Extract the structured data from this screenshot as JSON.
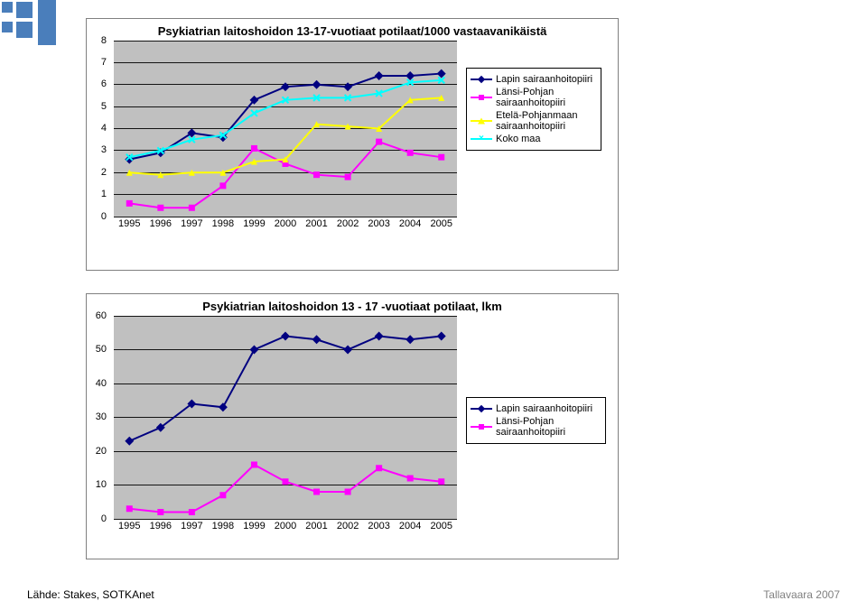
{
  "decorator_color": "#4a7ebb",
  "footer": {
    "source": "Lähde: Stakes, SOTKAnet",
    "author": "Tallavaara 2007"
  },
  "chart1": {
    "type": "line",
    "title": "Psykiatrian laitoshoidon 13-17-vuotiaat potilaat/1000 vastaavanikäistä",
    "plot_bg": "#c0c0c0",
    "grid_color": "#000000",
    "x_labels": [
      "1995",
      "1996",
      "1997",
      "1998",
      "1999",
      "2000",
      "2001",
      "2002",
      "2003",
      "2004",
      "2005"
    ],
    "y_min": 0,
    "y_max": 8,
    "y_step": 1,
    "series": [
      {
        "name": "Lapin sairaanhoitopiiri",
        "color": "#000080",
        "marker": "diamond",
        "values": [
          2.6,
          2.9,
          3.8,
          3.6,
          5.3,
          5.9,
          6.0,
          5.9,
          6.4,
          6.4,
          6.5
        ]
      },
      {
        "name": "Länsi-Pohjan sairaanhoitopiiri",
        "color": "#ff00ff",
        "marker": "square",
        "values": [
          0.6,
          0.4,
          0.4,
          1.4,
          3.1,
          2.4,
          1.9,
          1.8,
          3.4,
          2.9,
          2.7
        ]
      },
      {
        "name": "Etelä-Pohjanmaan sairaanhoitopiiri",
        "color": "#ffff00",
        "marker": "triangle",
        "values": [
          2.0,
          1.9,
          2.0,
          2.0,
          2.5,
          2.6,
          4.2,
          4.1,
          4.0,
          5.3,
          5.4
        ]
      },
      {
        "name": "Koko maa",
        "color": "#00ffff",
        "marker": "x",
        "values": [
          2.7,
          3.0,
          3.5,
          3.7,
          4.7,
          5.3,
          5.4,
          5.4,
          5.6,
          6.1,
          6.2
        ]
      }
    ],
    "tick_fontsize": 11
  },
  "chart2": {
    "type": "line",
    "title": "Psykiatrian laitoshoidon 13 - 17 -vuotiaat potilaat, lkm",
    "plot_bg": "#c0c0c0",
    "grid_color": "#000000",
    "x_labels": [
      "1995",
      "1996",
      "1997",
      "1998",
      "1999",
      "2000",
      "2001",
      "2002",
      "2003",
      "2004",
      "2005"
    ],
    "y_min": 0,
    "y_max": 60,
    "y_step": 10,
    "series": [
      {
        "name": "Lapin sairaanhoitopiiri",
        "color": "#000080",
        "marker": "diamond",
        "values": [
          23,
          27,
          34,
          33,
          50,
          54,
          53,
          50,
          54,
          53,
          54
        ]
      },
      {
        "name": "Länsi-Pohjan sairaanhoitopiiri",
        "color": "#ff00ff",
        "marker": "square",
        "values": [
          3,
          2,
          2,
          7,
          16,
          11,
          8,
          8,
          15,
          12,
          11
        ]
      }
    ],
    "tick_fontsize": 11
  }
}
